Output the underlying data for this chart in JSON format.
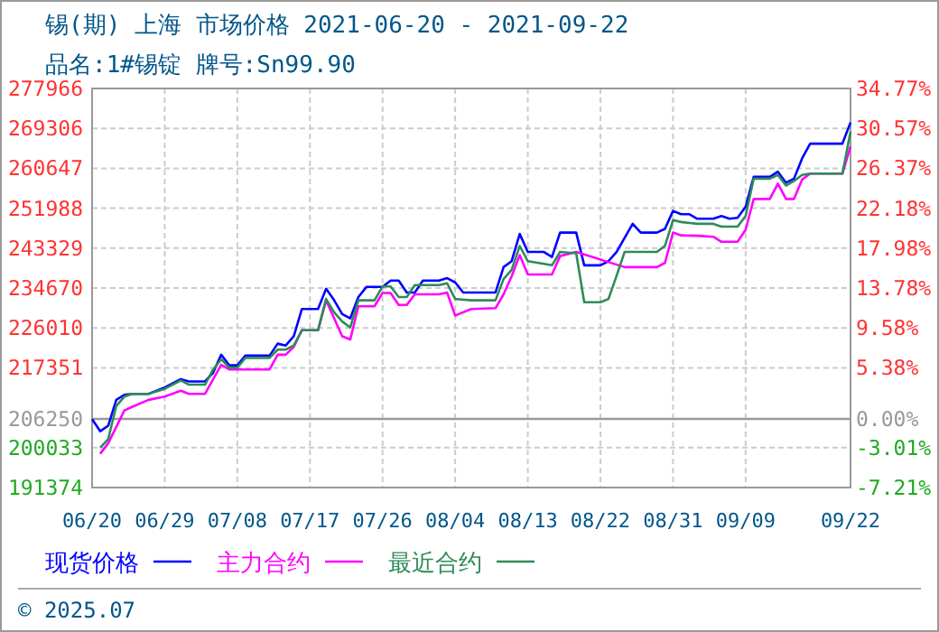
{
  "chart_data": {
    "type": "line",
    "title": "锡(期) 上海 市场价格 2021-06-20 - 2021-09-22",
    "subtitle": "品名:1#锡锭 牌号:Sn99.90",
    "xlim": [
      "2021-06-20",
      "2021-09-22"
    ],
    "xticks": [
      {
        "value": "2021-06-20",
        "label": "06/20"
      },
      {
        "value": "2021-06-29",
        "label": "06/29"
      },
      {
        "value": "2021-07-08",
        "label": "07/08"
      },
      {
        "value": "2021-07-17",
        "label": "07/17"
      },
      {
        "value": "2021-07-26",
        "label": "07/26"
      },
      {
        "value": "2021-08-04",
        "label": "08/04"
      },
      {
        "value": "2021-08-13",
        "label": "08/13"
      },
      {
        "value": "2021-08-22",
        "label": "08/22"
      },
      {
        "value": "2021-08-31",
        "label": "08/31"
      },
      {
        "value": "2021-09-09",
        "label": "09/09"
      },
      {
        "value": "2021-09-22",
        "label": "09/22"
      }
    ],
    "ylim": [
      191374,
      277966
    ],
    "yticks": [
      191374,
      200033,
      206250,
      217351,
      226010,
      234670,
      243329,
      251988,
      260647,
      269306,
      277966
    ],
    "y2lim": [
      -7.21,
      34.77
    ],
    "y2ticks": [
      {
        "value": -7.21,
        "label": "-7.21%"
      },
      {
        "value": -3.01,
        "label": "-3.01%"
      },
      {
        "value": 0,
        "label": "0.00%"
      },
      {
        "value": 5.38,
        "label": "5.38%"
      },
      {
        "value": 9.58,
        "label": "9.58%"
      },
      {
        "value": 13.78,
        "label": "13.78%"
      },
      {
        "value": 17.98,
        "label": "17.98%"
      },
      {
        "value": 22.18,
        "label": "22.18%"
      },
      {
        "value": 26.37,
        "label": "26.37%"
      },
      {
        "value": 30.57,
        "label": "30.57%"
      },
      {
        "value": 34.77,
        "label": "34.77%"
      }
    ],
    "grid": true,
    "legend": "bottom",
    "ref_lines": [
      {
        "axis": "y",
        "value": 206250,
        "color": "#999999"
      }
    ],
    "annotations": [
      "© 2025.07"
    ],
    "series": [
      {
        "name": "现货价格",
        "color": "#0000ff",
        "x": [
          "2021-06-20",
          "2021-06-21",
          "2021-06-22",
          "2021-06-23",
          "2021-06-24",
          "2021-06-25",
          "2021-06-27",
          "2021-06-29",
          "2021-07-01",
          "2021-07-02",
          "2021-07-04",
          "2021-07-05",
          "2021-07-06",
          "2021-07-07",
          "2021-07-08",
          "2021-07-09",
          "2021-07-12",
          "2021-07-13",
          "2021-07-14",
          "2021-07-15",
          "2021-07-16",
          "2021-07-18",
          "2021-07-19",
          "2021-07-20",
          "2021-07-21",
          "2021-07-22",
          "2021-07-23",
          "2021-07-24",
          "2021-07-26",
          "2021-07-27",
          "2021-07-28",
          "2021-07-29",
          "2021-07-30",
          "2021-07-31",
          "2021-08-02",
          "2021-08-03",
          "2021-08-04",
          "2021-08-05",
          "2021-08-07",
          "2021-08-09",
          "2021-08-10",
          "2021-08-11",
          "2021-08-12",
          "2021-08-13",
          "2021-08-15",
          "2021-08-16",
          "2021-08-17",
          "2021-08-19",
          "2021-08-20",
          "2021-08-22",
          "2021-08-23",
          "2021-08-24",
          "2021-08-26",
          "2021-08-27",
          "2021-08-29",
          "2021-08-30",
          "2021-08-31",
          "2021-09-01",
          "2021-09-02",
          "2021-09-03",
          "2021-09-05",
          "2021-09-06",
          "2021-09-07",
          "2021-09-08",
          "2021-09-09",
          "2021-09-10",
          "2021-09-12",
          "2021-09-13",
          "2021-09-14",
          "2021-09-15",
          "2021-09-16",
          "2021-09-17",
          "2021-09-21",
          "2021-09-22"
        ],
        "values": [
          206200,
          203600,
          204800,
          210400,
          211500,
          211700,
          211700,
          213100,
          214900,
          214400,
          214400,
          216300,
          220200,
          217900,
          217900,
          220000,
          220000,
          222600,
          222200,
          224200,
          230100,
          230100,
          234500,
          232000,
          229000,
          228100,
          232700,
          234900,
          234900,
          236300,
          236300,
          233700,
          233700,
          236300,
          236300,
          236800,
          235900,
          233700,
          233700,
          233700,
          239200,
          240500,
          246400,
          242500,
          242500,
          241400,
          246700,
          246700,
          239600,
          239600,
          240500,
          242500,
          248600,
          246700,
          246700,
          247500,
          251400,
          250700,
          250700,
          249700,
          249700,
          250300,
          249700,
          249900,
          252300,
          258800,
          258800,
          259900,
          257500,
          258400,
          262800,
          266000,
          266000,
          270600
        ]
      },
      {
        "name": "主力合约",
        "color": "#ff00ff",
        "x": [
          "2021-06-21",
          "2021-06-22",
          "2021-06-24",
          "2021-06-25",
          "2021-06-27",
          "2021-06-29",
          "2021-07-01",
          "2021-07-02",
          "2021-07-04",
          "2021-07-06",
          "2021-07-07",
          "2021-07-12",
          "2021-07-13",
          "2021-07-14",
          "2021-07-15",
          "2021-07-16",
          "2021-07-18",
          "2021-07-19",
          "2021-07-20",
          "2021-07-21",
          "2021-07-22",
          "2021-07-23",
          "2021-07-25",
          "2021-07-26",
          "2021-07-27",
          "2021-07-28",
          "2021-07-29",
          "2021-07-30",
          "2021-08-02",
          "2021-08-03",
          "2021-08-04",
          "2021-08-06",
          "2021-08-09",
          "2021-08-10",
          "2021-08-11",
          "2021-08-12",
          "2021-08-13",
          "2021-08-16",
          "2021-08-17",
          "2021-08-19",
          "2021-08-25",
          "2021-08-29",
          "2021-08-30",
          "2021-08-31",
          "2021-09-01",
          "2021-09-03",
          "2021-09-05",
          "2021-09-06",
          "2021-09-08",
          "2021-09-09",
          "2021-09-10",
          "2021-09-12",
          "2021-09-13",
          "2021-09-14",
          "2021-09-15",
          "2021-09-16",
          "2021-09-17",
          "2021-09-21",
          "2021-09-22"
        ],
        "values": [
          198700,
          201000,
          208100,
          208900,
          210400,
          211100,
          212400,
          211700,
          211700,
          218000,
          217000,
          217000,
          220200,
          220200,
          221900,
          225500,
          225500,
          232000,
          228100,
          224200,
          223500,
          230700,
          230700,
          233600,
          233600,
          231000,
          231000,
          233300,
          233300,
          233700,
          228700,
          230100,
          230300,
          233300,
          237200,
          241800,
          237600,
          237600,
          241600,
          242500,
          239200,
          239200,
          240100,
          246700,
          246100,
          246000,
          245800,
          244700,
          244700,
          247300,
          254000,
          254000,
          257300,
          254000,
          254000,
          258200,
          259500,
          259500,
          265400
        ]
      },
      {
        "name": "最近合约",
        "color": "#2e8b57",
        "x": [
          "2021-06-21",
          "2021-06-22",
          "2021-06-23",
          "2021-06-24",
          "2021-06-25",
          "2021-06-27",
          "2021-06-29",
          "2021-07-01",
          "2021-07-02",
          "2021-07-04",
          "2021-07-05",
          "2021-07-06",
          "2021-07-07",
          "2021-07-08",
          "2021-07-09",
          "2021-07-12",
          "2021-07-13",
          "2021-07-14",
          "2021-07-15",
          "2021-07-16",
          "2021-07-18",
          "2021-07-19",
          "2021-07-20",
          "2021-07-21",
          "2021-07-22",
          "2021-07-23",
          "2021-07-25",
          "2021-07-26",
          "2021-07-27",
          "2021-07-28",
          "2021-07-29",
          "2021-07-30",
          "2021-08-02",
          "2021-08-03",
          "2021-08-04",
          "2021-08-06",
          "2021-08-09",
          "2021-08-10",
          "2021-08-11",
          "2021-08-12",
          "2021-08-13",
          "2021-08-16",
          "2021-08-17",
          "2021-08-19",
          "2021-08-20",
          "2021-08-22",
          "2021-08-23",
          "2021-08-24",
          "2021-08-25",
          "2021-08-29",
          "2021-08-30",
          "2021-08-31",
          "2021-09-01",
          "2021-09-03",
          "2021-09-05",
          "2021-09-06",
          "2021-09-08",
          "2021-09-09",
          "2021-09-10",
          "2021-09-12",
          "2021-09-13",
          "2021-09-14",
          "2021-09-15",
          "2021-09-16",
          "2021-09-17",
          "2021-09-21",
          "2021-09-22"
        ],
        "values": [
          200000,
          201900,
          209100,
          211100,
          211700,
          211700,
          212800,
          214600,
          213700,
          213700,
          217000,
          219200,
          217400,
          217400,
          219500,
          219500,
          221300,
          221300,
          222200,
          225500,
          225500,
          232300,
          229400,
          227400,
          226100,
          232000,
          232000,
          235000,
          235000,
          232700,
          232700,
          235300,
          235300,
          235700,
          232300,
          232000,
          232000,
          236600,
          238600,
          243800,
          240500,
          239600,
          242500,
          242200,
          231600,
          231600,
          232300,
          237300,
          242500,
          242500,
          243800,
          249400,
          249000,
          248600,
          248600,
          248000,
          248000,
          250300,
          258400,
          258400,
          259200,
          256900,
          257900,
          259200,
          259500,
          259500,
          268600
        ]
      }
    ]
  }
}
